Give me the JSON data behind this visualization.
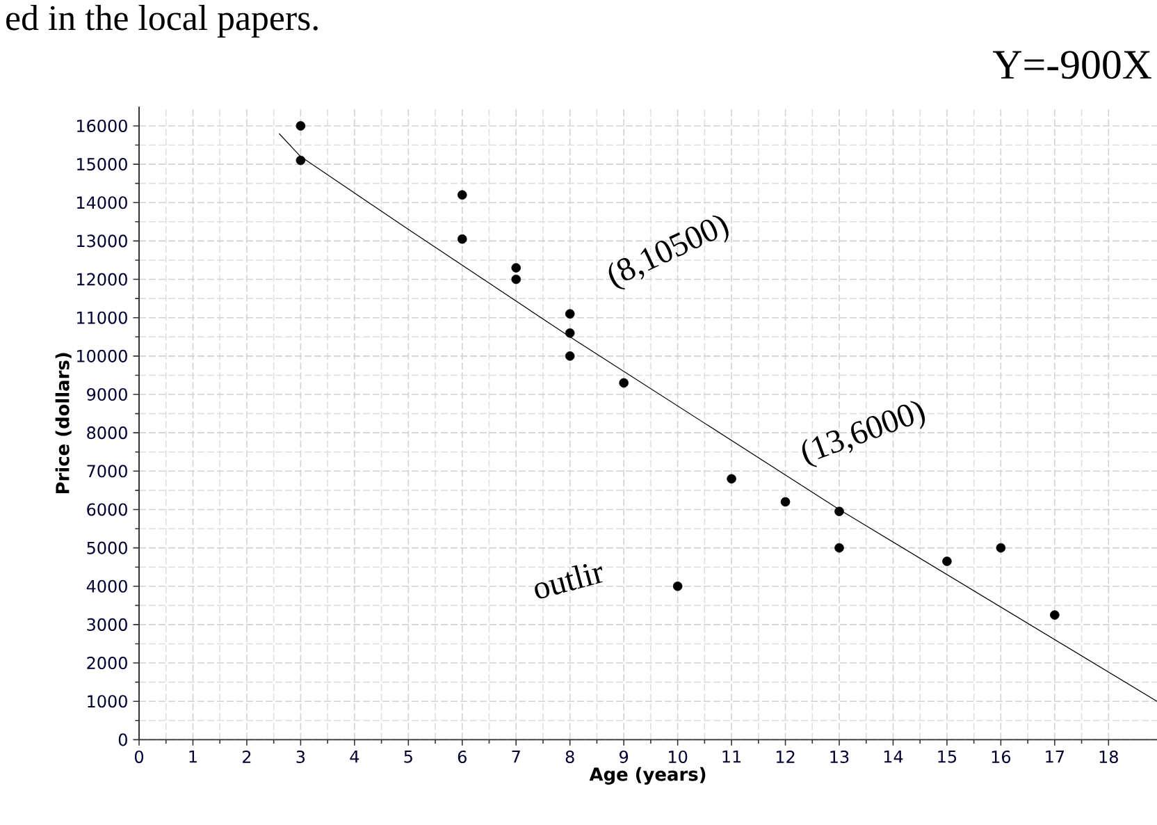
{
  "chart_data": {
    "type": "scatter",
    "xlabel": "Age  (years)",
    "ylabel": "Price (dollars)",
    "xlim": [
      0,
      18.9
    ],
    "ylim": [
      0,
      16500
    ],
    "xticks": [
      0,
      1,
      2,
      3,
      4,
      5,
      6,
      7,
      8,
      9,
      10,
      11,
      12,
      13,
      14,
      15,
      16,
      17,
      18
    ],
    "yticks": [
      0,
      1000,
      2000,
      3000,
      4000,
      5000,
      6000,
      7000,
      8000,
      9000,
      10000,
      11000,
      12000,
      13000,
      14000,
      15000,
      16000
    ],
    "grid": true,
    "marker": "circle",
    "series": [
      {
        "color": "#000000",
        "x": [
          3,
          3,
          6,
          6,
          7,
          7,
          8,
          8,
          8,
          9,
          10,
          11,
          12,
          13,
          13,
          15,
          16,
          17
        ],
        "values": [
          16000,
          15100,
          14200,
          13050,
          12300,
          12000,
          11100,
          10600,
          10000,
          9300,
          4000,
          6800,
          6200,
          5950,
          5000,
          4650,
          5000,
          3250
        ]
      },
      {
        "type": "line",
        "color": "#000000",
        "marker": "none",
        "x": [
          2.6,
          3,
          5,
          8,
          13,
          18.9
        ],
        "values": [
          15800,
          15200,
          13300,
          10500,
          6000,
          1000
        ]
      }
    ],
    "annotations": [
      "ed in the local papers.",
      "Y=-900X",
      {
        "text": "(8,10500)",
        "x": 8,
        "y": 10500
      },
      {
        "text": "(13,6000)",
        "x": 13,
        "y": 6000
      },
      {
        "text": "outlir",
        "x": 10,
        "y": 4000
      }
    ]
  }
}
